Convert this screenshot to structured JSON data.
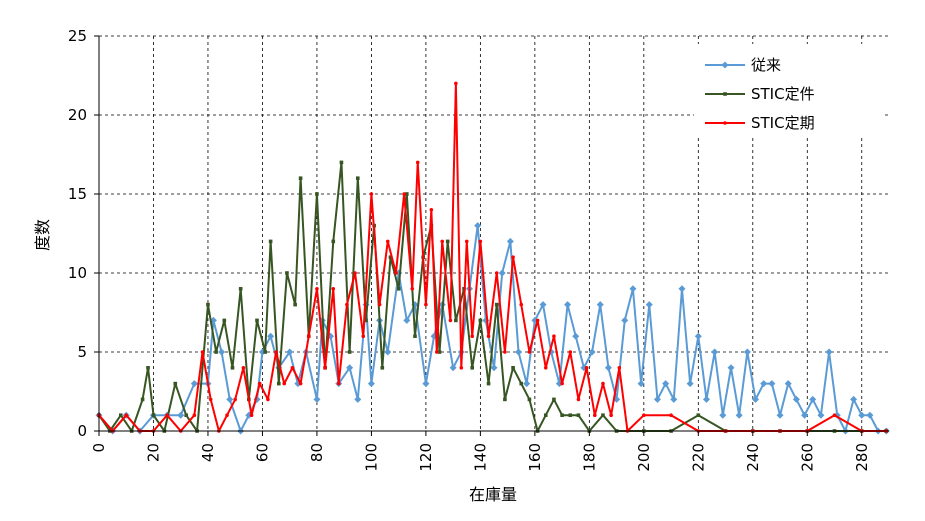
{
  "chart_data": {
    "type": "line",
    "xlabel": "在庫量",
    "ylabel": "度数",
    "xlim": [
      0,
      290
    ],
    "ylim": [
      0,
      25
    ],
    "x_ticks": [
      0,
      20,
      40,
      60,
      80,
      100,
      120,
      140,
      160,
      180,
      200,
      220,
      240,
      260,
      280
    ],
    "y_ticks": [
      0,
      5,
      10,
      15,
      20,
      25
    ],
    "grid": true,
    "legend_position": "top-right",
    "series": [
      {
        "name": "従来",
        "color": "#5b9bd5",
        "marker": "diamond",
        "points": [
          [
            0,
            1
          ],
          [
            5,
            0
          ],
          [
            10,
            1
          ],
          [
            15,
            0
          ],
          [
            20,
            1
          ],
          [
            25,
            1
          ],
          [
            30,
            1
          ],
          [
            35,
            3
          ],
          [
            40,
            3
          ],
          [
            42,
            7
          ],
          [
            45,
            5
          ],
          [
            48,
            2
          ],
          [
            52,
            0
          ],
          [
            55,
            1
          ],
          [
            58,
            2
          ],
          [
            60,
            5
          ],
          [
            63,
            6
          ],
          [
            66,
            4
          ],
          [
            70,
            5
          ],
          [
            73,
            3
          ],
          [
            76,
            5
          ],
          [
            80,
            2
          ],
          [
            82,
            7
          ],
          [
            85,
            6
          ],
          [
            88,
            3
          ],
          [
            92,
            4
          ],
          [
            95,
            2
          ],
          [
            98,
            8
          ],
          [
            100,
            3
          ],
          [
            103,
            7
          ],
          [
            106,
            5
          ],
          [
            110,
            10
          ],
          [
            113,
            7
          ],
          [
            116,
            8
          ],
          [
            120,
            3
          ],
          [
            123,
            6
          ],
          [
            126,
            8
          ],
          [
            130,
            4
          ],
          [
            133,
            5
          ],
          [
            136,
            9
          ],
          [
            139,
            13
          ],
          [
            142,
            7
          ],
          [
            145,
            4
          ],
          [
            148,
            10
          ],
          [
            151,
            12
          ],
          [
            154,
            5
          ],
          [
            157,
            3
          ],
          [
            160,
            7
          ],
          [
            163,
            8
          ],
          [
            166,
            5
          ],
          [
            169,
            3
          ],
          [
            172,
            8
          ],
          [
            175,
            6
          ],
          [
            178,
            4
          ],
          [
            181,
            5
          ],
          [
            184,
            8
          ],
          [
            187,
            4
          ],
          [
            190,
            2
          ],
          [
            193,
            7
          ],
          [
            196,
            9
          ],
          [
            199,
            3
          ],
          [
            202,
            8
          ],
          [
            205,
            2
          ],
          [
            208,
            3
          ],
          [
            211,
            2
          ],
          [
            214,
            9
          ],
          [
            217,
            3
          ],
          [
            220,
            6
          ],
          [
            223,
            2
          ],
          [
            226,
            5
          ],
          [
            229,
            1
          ],
          [
            232,
            4
          ],
          [
            235,
            1
          ],
          [
            238,
            5
          ],
          [
            241,
            2
          ],
          [
            244,
            3
          ],
          [
            247,
            3
          ],
          [
            250,
            1
          ],
          [
            253,
            3
          ],
          [
            256,
            2
          ],
          [
            259,
            1
          ],
          [
            262,
            2
          ],
          [
            265,
            1
          ],
          [
            268,
            5
          ],
          [
            271,
            1
          ],
          [
            274,
            0
          ],
          [
            277,
            2
          ],
          [
            280,
            1
          ],
          [
            283,
            1
          ],
          [
            286,
            0
          ],
          [
            289,
            0
          ]
        ]
      },
      {
        "name": "STIC定件",
        "color": "#375623",
        "marker": "square",
        "points": [
          [
            0,
            1
          ],
          [
            4,
            0
          ],
          [
            8,
            1
          ],
          [
            12,
            0
          ],
          [
            16,
            2
          ],
          [
            18,
            4
          ],
          [
            20,
            1
          ],
          [
            24,
            0
          ],
          [
            28,
            3
          ],
          [
            32,
            1
          ],
          [
            36,
            0
          ],
          [
            40,
            8
          ],
          [
            43,
            5
          ],
          [
            46,
            7
          ],
          [
            49,
            4
          ],
          [
            52,
            9
          ],
          [
            55,
            2
          ],
          [
            58,
            7
          ],
          [
            61,
            5
          ],
          [
            63,
            12
          ],
          [
            66,
            3
          ],
          [
            69,
            10
          ],
          [
            72,
            8
          ],
          [
            74,
            16
          ],
          [
            77,
            6
          ],
          [
            80,
            15
          ],
          [
            83,
            4
          ],
          [
            86,
            12
          ],
          [
            89,
            17
          ],
          [
            92,
            5
          ],
          [
            95,
            16
          ],
          [
            98,
            7
          ],
          [
            101,
            13
          ],
          [
            104,
            4
          ],
          [
            107,
            11
          ],
          [
            110,
            9
          ],
          [
            113,
            15
          ],
          [
            116,
            6
          ],
          [
            119,
            11
          ],
          [
            122,
            13
          ],
          [
            125,
            5
          ],
          [
            128,
            12
          ],
          [
            131,
            7
          ],
          [
            134,
            9
          ],
          [
            137,
            4
          ],
          [
            140,
            7
          ],
          [
            143,
            3
          ],
          [
            146,
            8
          ],
          [
            149,
            2
          ],
          [
            152,
            4
          ],
          [
            155,
            3
          ],
          [
            158,
            2
          ],
          [
            161,
            0
          ],
          [
            164,
            1
          ],
          [
            167,
            2
          ],
          [
            170,
            1
          ],
          [
            173,
            1
          ],
          [
            176,
            1
          ],
          [
            180,
            0
          ],
          [
            185,
            1
          ],
          [
            190,
            0
          ],
          [
            200,
            0
          ],
          [
            210,
            0
          ],
          [
            220,
            1
          ],
          [
            230,
            0
          ],
          [
            240,
            0
          ],
          [
            250,
            0
          ],
          [
            260,
            0
          ],
          [
            270,
            0
          ],
          [
            280,
            0
          ],
          [
            289,
            0
          ]
        ]
      },
      {
        "name": "STIC定期",
        "color": "#ff0000",
        "marker": "dot",
        "points": [
          [
            0,
            1
          ],
          [
            5,
            0
          ],
          [
            10,
            1
          ],
          [
            15,
            0
          ],
          [
            20,
            0
          ],
          [
            25,
            1
          ],
          [
            30,
            0
          ],
          [
            35,
            1
          ],
          [
            38,
            5
          ],
          [
            41,
            2
          ],
          [
            44,
            0
          ],
          [
            47,
            1
          ],
          [
            50,
            2
          ],
          [
            53,
            4
          ],
          [
            56,
            1
          ],
          [
            59,
            3
          ],
          [
            62,
            2
          ],
          [
            65,
            5
          ],
          [
            68,
            3
          ],
          [
            71,
            4
          ],
          [
            74,
            3
          ],
          [
            77,
            6
          ],
          [
            80,
            9
          ],
          [
            83,
            4
          ],
          [
            86,
            9
          ],
          [
            88,
            3
          ],
          [
            91,
            8
          ],
          [
            94,
            10
          ],
          [
            97,
            6
          ],
          [
            100,
            15
          ],
          [
            103,
            8
          ],
          [
            106,
            12
          ],
          [
            109,
            10
          ],
          [
            112,
            15
          ],
          [
            115,
            9
          ],
          [
            117,
            17
          ],
          [
            120,
            8
          ],
          [
            122,
            14
          ],
          [
            124,
            5
          ],
          [
            126,
            12
          ],
          [
            129,
            7
          ],
          [
            131,
            22
          ],
          [
            133,
            4
          ],
          [
            135,
            12
          ],
          [
            137,
            6
          ],
          [
            140,
            12
          ],
          [
            143,
            6
          ],
          [
            146,
            10
          ],
          [
            149,
            5
          ],
          [
            152,
            11
          ],
          [
            155,
            8
          ],
          [
            158,
            5
          ],
          [
            161,
            7
          ],
          [
            164,
            4
          ],
          [
            167,
            6
          ],
          [
            170,
            3
          ],
          [
            173,
            5
          ],
          [
            176,
            2
          ],
          [
            179,
            4
          ],
          [
            182,
            1
          ],
          [
            185,
            3
          ],
          [
            188,
            1
          ],
          [
            191,
            4
          ],
          [
            194,
            0
          ],
          [
            200,
            1
          ],
          [
            210,
            1
          ],
          [
            220,
            0
          ],
          [
            230,
            0
          ],
          [
            240,
            0
          ],
          [
            250,
            0
          ],
          [
            260,
            0
          ],
          [
            270,
            1
          ],
          [
            280,
            0
          ],
          [
            289,
            0
          ]
        ]
      }
    ]
  }
}
